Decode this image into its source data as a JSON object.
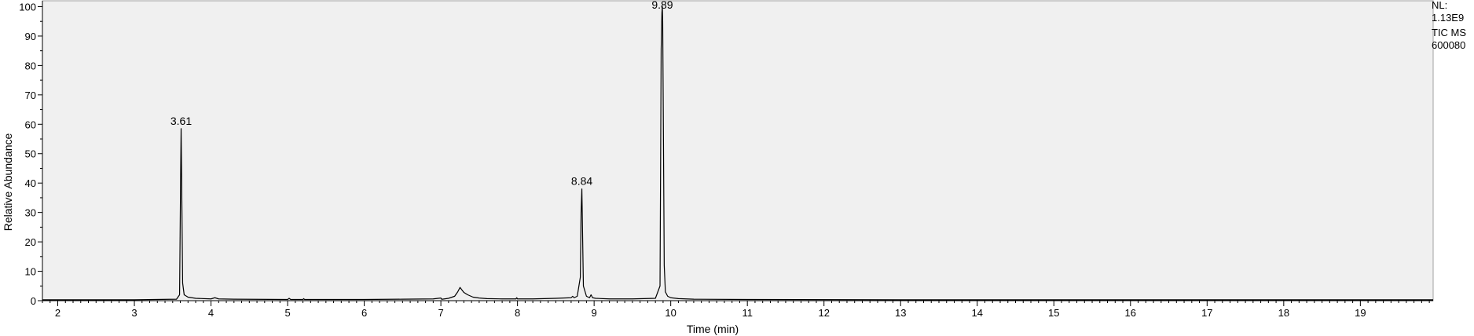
{
  "chart_data": {
    "type": "line",
    "xlabel": "Time (min)",
    "ylabel": "Relative Abundance",
    "xlim": [
      1.8,
      19.95
    ],
    "ylim": [
      0,
      102
    ],
    "x_ticks": [
      2,
      3,
      4,
      5,
      6,
      7,
      8,
      9,
      10,
      11,
      12,
      13,
      14,
      15,
      16,
      17,
      18,
      19
    ],
    "y_ticks": [
      0,
      10,
      20,
      30,
      40,
      50,
      60,
      70,
      80,
      90,
      100
    ],
    "x_minor_step": 0.1,
    "y_minor_step": 5,
    "grid": false,
    "line_color": "#000000",
    "series": [
      {
        "x": [
          1.8,
          2.5,
          3.0,
          3.55,
          3.59,
          3.605,
          3.61,
          3.615,
          3.63,
          3.65,
          3.7,
          3.8,
          4.0,
          4.05,
          4.1,
          4.3,
          5.0,
          5.02,
          5.04,
          5.2,
          5.21,
          5.22,
          6.0,
          6.5,
          6.9,
          7.0,
          7.01,
          7.02,
          7.1,
          7.18,
          7.22,
          7.25,
          7.27,
          7.3,
          7.35,
          7.42,
          7.5,
          7.6,
          7.8,
          7.98,
          7.99,
          8.0,
          8.2,
          8.5,
          8.7,
          8.72,
          8.74,
          8.78,
          8.82,
          8.83,
          8.84,
          8.845,
          8.86,
          8.9,
          8.94,
          8.96,
          8.98,
          9.02,
          9.2,
          9.5,
          9.8,
          9.86,
          9.875,
          9.885,
          9.89,
          9.895,
          9.905,
          9.915,
          9.93,
          9.96,
          10.0,
          10.1,
          10.3,
          11.0,
          13.0,
          16.0,
          19.95
        ],
        "y": [
          0.3,
          0.3,
          0.3,
          0.5,
          2.0,
          46.0,
          58.5,
          46.0,
          6.0,
          2.0,
          1.2,
          0.8,
          0.6,
          1.0,
          0.6,
          0.5,
          0.4,
          0.8,
          0.4,
          0.4,
          0.7,
          0.4,
          0.4,
          0.5,
          0.6,
          0.9,
          0.5,
          0.5,
          0.8,
          1.5,
          3.0,
          4.5,
          3.8,
          2.8,
          2.0,
          1.2,
          0.9,
          0.7,
          0.6,
          0.6,
          1.0,
          0.6,
          0.6,
          0.8,
          1.0,
          1.5,
          1.0,
          1.5,
          8.0,
          30.0,
          38.0,
          30.0,
          5.0,
          1.5,
          1.0,
          2.0,
          1.0,
          0.8,
          0.6,
          0.6,
          0.8,
          5.0,
          85.5,
          98.0,
          100.0,
          95.0,
          54.5,
          12.0,
          3.0,
          1.5,
          1.0,
          0.7,
          0.5,
          0.4,
          0.3,
          0.3,
          0.3
        ]
      }
    ],
    "annotations": [
      {
        "x": 3.61,
        "y": 58.5,
        "text": "3.61"
      },
      {
        "x": 8.84,
        "y": 38.0,
        "text": "8.84"
      },
      {
        "x": 9.89,
        "y": 100.0,
        "text": "9.89"
      }
    ]
  },
  "info": {
    "line1": "NL:",
    "line2": "1.13E9",
    "line3": "TIC  MS",
    "line4": "600080"
  }
}
